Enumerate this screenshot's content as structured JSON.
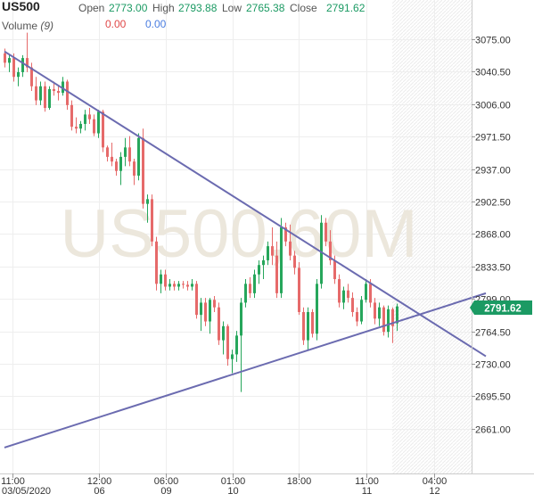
{
  "header": {
    "symbol": "US500",
    "open_label": "Open",
    "open_value": "2773.00",
    "high_label": "High",
    "high_value": "2793.88",
    "low_label": "Low",
    "low_value": "2765.38",
    "close_label": "Close",
    "close_value": "2791.62",
    "volume_label": "Volume",
    "volume_param": "(9)",
    "volume_value_1": "0.00",
    "volume_value_2": "0.00"
  },
  "watermark": "US500,60M",
  "price_tag": "2791.62",
  "colors": {
    "up": "#26a65b",
    "down": "#e66a6a",
    "trendline": "#6b6bb0",
    "price_tag_bg": "#1b9a63",
    "grid": "#eeeeee"
  },
  "chart_data": {
    "type": "candlestick",
    "y_ticks": [
      "3075.00",
      "3040.50",
      "3006.00",
      "2971.50",
      "2937.00",
      "2902.50",
      "2868.00",
      "2833.50",
      "2799.00",
      "2764.50",
      "2730.00",
      "2695.50",
      "2661.00"
    ],
    "x_ticks": [
      {
        "time": "11:00",
        "date": "03/05/2020"
      },
      {
        "time": "12:00",
        "date": "06"
      },
      {
        "time": "06:00",
        "date": "09"
      },
      {
        "time": "01:00",
        "date": "10"
      },
      {
        "time": "18:00",
        "date": ""
      },
      {
        "time": "11:00",
        "date": "11"
      },
      {
        "time": "04:00",
        "date": "12"
      }
    ],
    "ylim": [
      2635,
      3090
    ],
    "trendlines": [
      {
        "name": "resistance",
        "x1": 0,
        "y1": 3062,
        "x2": 108,
        "y2": 2738
      },
      {
        "name": "support",
        "x1": 0,
        "y1": 2641,
        "x2": 108,
        "y2": 2805
      }
    ],
    "candles": [
      [
        3060,
        3065,
        3045,
        3050
      ],
      [
        3050,
        3058,
        3040,
        3055
      ],
      [
        3055,
        3060,
        3030,
        3035
      ],
      [
        3035,
        3045,
        3025,
        3040
      ],
      [
        3040,
        3058,
        3035,
        3055
      ],
      [
        3055,
        3082,
        3040,
        3045
      ],
      [
        3045,
        3050,
        3020,
        3025
      ],
      [
        3025,
        3035,
        3005,
        3010
      ],
      [
        3010,
        3030,
        3005,
        3025
      ],
      [
        3025,
        3030,
        2998,
        3002
      ],
      [
        3002,
        3025,
        3000,
        3022
      ],
      [
        3022,
        3030,
        3015,
        3020
      ],
      [
        3020,
        3025,
        3010,
        3018
      ],
      [
        3018,
        3035,
        3015,
        3030
      ],
      [
        3030,
        3032,
        3000,
        3005
      ],
      [
        3005,
        3010,
        2978,
        2982
      ],
      [
        2982,
        2992,
        2975,
        2980
      ],
      [
        2980,
        2988,
        2975,
        2985
      ],
      [
        2985,
        3000,
        2978,
        2995
      ],
      [
        2995,
        3002,
        2985,
        2990
      ],
      [
        2990,
        2995,
        2972,
        2975
      ],
      [
        2975,
        3000,
        2970,
        2998
      ],
      [
        2998,
        3000,
        2955,
        2960
      ],
      [
        2960,
        2962,
        2945,
        2950
      ],
      [
        2950,
        2965,
        2940,
        2945
      ],
      [
        2945,
        2948,
        2930,
        2935
      ],
      [
        2935,
        2955,
        2920,
        2950
      ],
      [
        2950,
        2970,
        2940,
        2960
      ],
      [
        2960,
        2972,
        2940,
        2945
      ],
      [
        2945,
        2948,
        2920,
        2930
      ],
      [
        2930,
        2975,
        2925,
        2970
      ],
      [
        2970,
        2980,
        2895,
        2900
      ],
      [
        2900,
        2910,
        2880,
        2905
      ],
      [
        2905,
        2910,
        2855,
        2860
      ],
      [
        2860,
        2865,
        2808,
        2815
      ],
      [
        2815,
        2830,
        2805,
        2825
      ],
      [
        2825,
        2830,
        2808,
        2812
      ],
      [
        2812,
        2820,
        2808,
        2815
      ],
      [
        2815,
        2818,
        2808,
        2812
      ],
      [
        2812,
        2818,
        2808,
        2815
      ],
      [
        2815,
        2818,
        2810,
        2814
      ],
      [
        2814,
        2818,
        2808,
        2812
      ],
      [
        2812,
        2820,
        2808,
        2815
      ],
      [
        2815,
        2818,
        2778,
        2782
      ],
      [
        2782,
        2800,
        2765,
        2795
      ],
      [
        2795,
        2800,
        2770,
        2775
      ],
      [
        2775,
        2800,
        2762,
        2798
      ],
      [
        2798,
        2802,
        2785,
        2790
      ],
      [
        2790,
        2795,
        2750,
        2755
      ],
      [
        2755,
        2775,
        2740,
        2770
      ],
      [
        2770,
        2772,
        2728,
        2735
      ],
      [
        2735,
        2745,
        2720,
        2740
      ],
      [
        2740,
        2765,
        2732,
        2760
      ],
      [
        2760,
        2800,
        2700,
        2795
      ],
      [
        2795,
        2820,
        2790,
        2815
      ],
      [
        2815,
        2822,
        2800,
        2805
      ],
      [
        2805,
        2830,
        2800,
        2825
      ],
      [
        2825,
        2840,
        2815,
        2835
      ],
      [
        2835,
        2845,
        2820,
        2840
      ],
      [
        2840,
        2860,
        2835,
        2855
      ],
      [
        2855,
        2875,
        2835,
        2845
      ],
      [
        2845,
        2860,
        2800,
        2805
      ],
      [
        2805,
        2885,
        2800,
        2875
      ],
      [
        2875,
        2880,
        2855,
        2860
      ],
      [
        2860,
        2878,
        2840,
        2845
      ],
      [
        2845,
        2850,
        2825,
        2832
      ],
      [
        2832,
        2838,
        2782,
        2785
      ],
      [
        2785,
        2790,
        2750,
        2755
      ],
      [
        2755,
        2790,
        2745,
        2785
      ],
      [
        2785,
        2788,
        2758,
        2762
      ],
      [
        2762,
        2820,
        2755,
        2815
      ],
      [
        2815,
        2888,
        2810,
        2880
      ],
      [
        2880,
        2885,
        2855,
        2860
      ],
      [
        2860,
        2872,
        2835,
        2840
      ],
      [
        2840,
        2845,
        2815,
        2820
      ],
      [
        2820,
        2825,
        2790,
        2795
      ],
      [
        2795,
        2812,
        2788,
        2808
      ],
      [
        2808,
        2815,
        2795,
        2800
      ],
      [
        2800,
        2806,
        2780,
        2785
      ],
      [
        2785,
        2790,
        2770,
        2775
      ],
      [
        2775,
        2802,
        2772,
        2798
      ],
      [
        2798,
        2820,
        2795,
        2815
      ],
      [
        2815,
        2820,
        2790,
        2795
      ],
      [
        2795,
        2800,
        2772,
        2778
      ],
      [
        2778,
        2795,
        2770,
        2790
      ],
      [
        2790,
        2792,
        2760,
        2764
      ],
      [
        2764,
        2792,
        2758,
        2788
      ],
      [
        2788,
        2790,
        2752,
        2770
      ],
      [
        2773,
        2794,
        2765,
        2791
      ]
    ]
  }
}
